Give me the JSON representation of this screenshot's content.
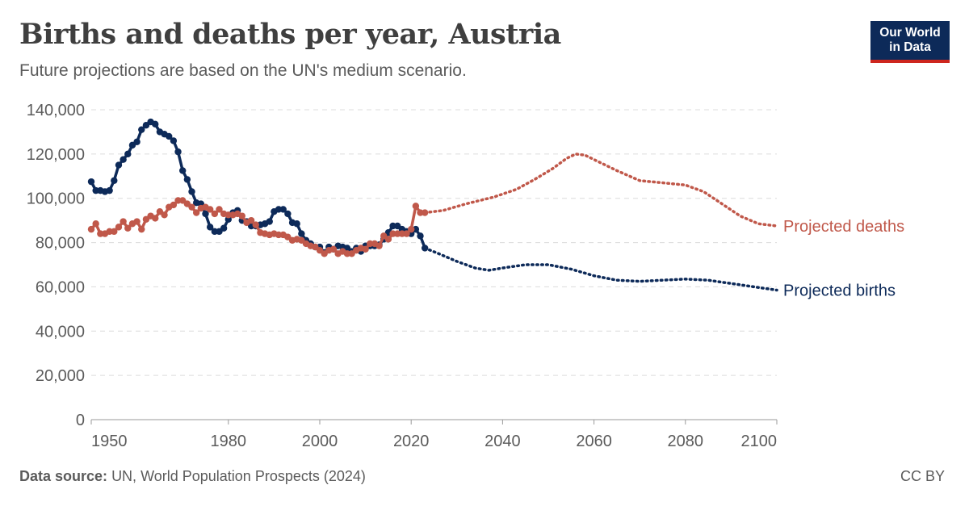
{
  "header": {
    "title": "Births and deaths per year, Austria",
    "subtitle": "Future projections are based on the UN's medium scenario."
  },
  "logo": {
    "line1": "Our World",
    "line2": "in Data"
  },
  "footer": {
    "source_label": "Data source:",
    "source_text": "UN, World Population Prospects (2024)",
    "license": "CC BY"
  },
  "chart_data": {
    "type": "line",
    "xlim": [
      1950,
      2100
    ],
    "ylim": [
      0,
      140000
    ],
    "x_ticks": [
      1950,
      1980,
      2000,
      2020,
      2040,
      2060,
      2080,
      2100
    ],
    "x_tick_labels": [
      "1950",
      "1980",
      "2000",
      "2020",
      "2040",
      "2060",
      "2080",
      "2100"
    ],
    "y_ticks": [
      0,
      20000,
      40000,
      60000,
      80000,
      100000,
      120000,
      140000
    ],
    "y_tick_labels": [
      "0",
      "20,000",
      "40,000",
      "60,000",
      "80,000",
      "100,000",
      "120,000",
      "140,000"
    ],
    "grid": true,
    "legend": "inline labels at right end of projected lines",
    "colors": {
      "births": "#0d2a59",
      "deaths": "#c0584a"
    },
    "series": [
      {
        "key": "births",
        "style": "solid-markers",
        "x": [
          1950,
          1951,
          1952,
          1953,
          1954,
          1955,
          1956,
          1957,
          1958,
          1959,
          1960,
          1961,
          1962,
          1963,
          1964,
          1965,
          1966,
          1967,
          1968,
          1969,
          1970,
          1971,
          1972,
          1973,
          1974,
          1975,
          1976,
          1977,
          1978,
          1979,
          1980,
          1981,
          1982,
          1983,
          1984,
          1985,
          1986,
          1987,
          1988,
          1989,
          1990,
          1991,
          1992,
          1993,
          1994,
          1995,
          1996,
          1997,
          1998,
          1999,
          2000,
          2001,
          2002,
          2003,
          2004,
          2005,
          2006,
          2007,
          2008,
          2009,
          2010,
          2011,
          2012,
          2013,
          2014,
          2015,
          2016,
          2017,
          2018,
          2019,
          2020,
          2021,
          2022,
          2023
        ],
        "values": [
          107500,
          103500,
          103500,
          103000,
          103500,
          108000,
          115000,
          117500,
          120000,
          124000,
          125500,
          131000,
          133000,
          134500,
          133500,
          130000,
          129000,
          128000,
          126000,
          121000,
          112500,
          108500,
          103000,
          98000,
          97500,
          93000,
          87000,
          85000,
          85000,
          86500,
          90500,
          93500,
          94500,
          90000,
          89500,
          87500,
          87500,
          88000,
          88500,
          89500,
          94000,
          95000,
          95000,
          93000,
          89000,
          88500,
          84000,
          81000,
          79500,
          78000,
          78000,
          75500,
          78000,
          77000,
          78500,
          78000,
          77500,
          76000,
          77500,
          76000,
          78500,
          78500,
          78500,
          79000,
          81500,
          84500,
          87500,
          87500,
          86000,
          85000,
          84000,
          86000,
          83000,
          77500
        ]
      },
      {
        "key": "births_projected",
        "name": "Projected births",
        "style": "dotted",
        "x": [
          2023,
          2026,
          2030,
          2034,
          2037,
          2040,
          2045,
          2050,
          2055,
          2060,
          2065,
          2070,
          2075,
          2080,
          2085,
          2090,
          2095,
          2100
        ],
        "values": [
          77500,
          75000,
          71500,
          68500,
          67500,
          68500,
          70000,
          70000,
          68000,
          65000,
          63000,
          62500,
          63000,
          63500,
          63000,
          61500,
          60000,
          58500
        ]
      },
      {
        "key": "deaths",
        "style": "solid-markers",
        "x": [
          1950,
          1951,
          1952,
          1953,
          1954,
          1955,
          1956,
          1957,
          1958,
          1959,
          1960,
          1961,
          1962,
          1963,
          1964,
          1965,
          1966,
          1967,
          1968,
          1969,
          1970,
          1971,
          1972,
          1973,
          1974,
          1975,
          1976,
          1977,
          1978,
          1979,
          1980,
          1981,
          1982,
          1983,
          1984,
          1985,
          1986,
          1987,
          1988,
          1989,
          1990,
          1991,
          1992,
          1993,
          1994,
          1995,
          1996,
          1997,
          1998,
          1999,
          2000,
          2001,
          2002,
          2003,
          2004,
          2005,
          2006,
          2007,
          2008,
          2009,
          2010,
          2011,
          2012,
          2013,
          2014,
          2015,
          2016,
          2017,
          2018,
          2019,
          2020,
          2021,
          2022,
          2023
        ],
        "values": [
          86000,
          88500,
          84000,
          84000,
          85000,
          85000,
          87000,
          89500,
          86500,
          88500,
          89500,
          86000,
          90500,
          92000,
          91000,
          94000,
          92500,
          96000,
          97000,
          99000,
          99000,
          97500,
          96000,
          93500,
          95500,
          96000,
          95000,
          93000,
          95000,
          93000,
          92500,
          92500,
          93000,
          92000,
          89000,
          90000,
          88000,
          84500,
          84000,
          83500,
          84000,
          83500,
          83500,
          82500,
          81000,
          81500,
          81000,
          79500,
          78500,
          78000,
          76500,
          75000,
          76500,
          77000,
          75000,
          76000,
          75000,
          75000,
          76500,
          77500,
          77000,
          79500,
          79500,
          78500,
          83000,
          81500,
          84000,
          84000,
          84000,
          84000,
          86000,
          96500,
          93500,
          93500
        ]
      },
      {
        "key": "deaths_projected",
        "name": "Projected deaths",
        "style": "dotted",
        "x": [
          2023,
          2027,
          2032,
          2038,
          2043,
          2047,
          2051,
          2054,
          2056,
          2058,
          2061,
          2065,
          2070,
          2075,
          2080,
          2084,
          2088,
          2092,
          2096,
          2100
        ],
        "values": [
          93500,
          94500,
          97500,
          100500,
          104000,
          108500,
          113500,
          118000,
          120000,
          119500,
          116500,
          112500,
          108000,
          107000,
          106000,
          103000,
          97500,
          92000,
          88500,
          87500
        ]
      }
    ]
  }
}
